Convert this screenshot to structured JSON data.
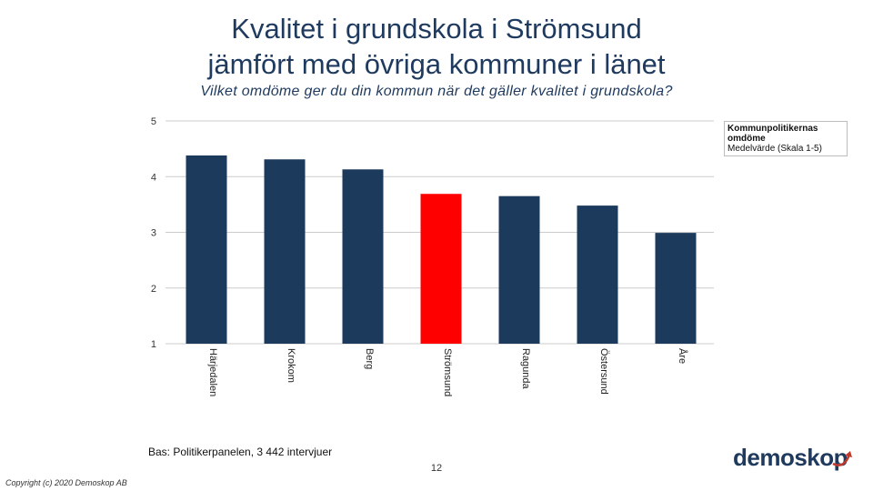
{
  "title_line1": "Kvalitet i grundskola i Strömsund",
  "title_line2": "jämfört med övriga kommuner i länet",
  "question": "Vilket omdöme ger du din kommun när det gäller kvalitet i grundskola?",
  "legend": {
    "line1": "Kommunpolitikernas",
    "line2": "omdöme",
    "line3": "Medelvärde (Skala 1-5)"
  },
  "source": "Bas: Politikerpanelen, 3 442 intervjuer",
  "page_number": "12",
  "copyright": "Copyright (c) 2020 Demoskop AB",
  "logo_text": "demoskop",
  "colors": {
    "bar": "#1b3a5c",
    "highlight": "#ff0000",
    "grid": "#cccccc",
    "logo_arrow": "#c0392b"
  },
  "chart_data": {
    "type": "bar",
    "categories": [
      "Härjedalen",
      "Krokom",
      "Berg",
      "Strömsund",
      "Ragunda",
      "Östersund",
      "Åre"
    ],
    "values": [
      4.38,
      4.31,
      4.13,
      3.69,
      3.65,
      3.48,
      2.99
    ],
    "highlight": "Strömsund",
    "ylim": [
      1,
      5
    ],
    "yticks": [
      1,
      2,
      3,
      4,
      5
    ],
    "grid": true,
    "legend_position": "top-right",
    "xlabel": "",
    "ylabel": ""
  }
}
